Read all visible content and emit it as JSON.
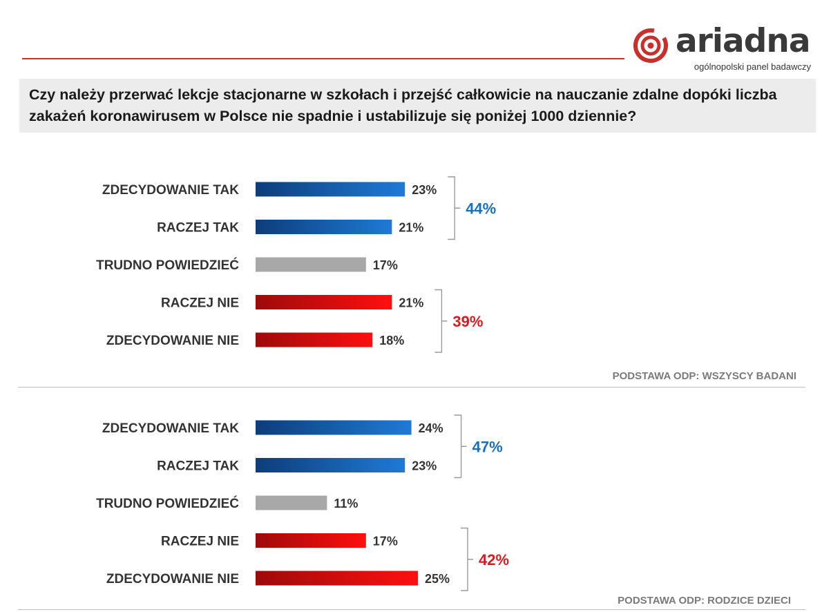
{
  "brand": {
    "name": "ariadna",
    "tagline": "ogólnopolski panel badawczy",
    "accent": "#c9302c"
  },
  "question": "Czy należy przerwać lekcje stacjonarne w szkołach i przejść całkowicie na nauczanie zdalne dopóki liczba zakażeń koronawirusem w Polsce nie spadnie i ustabilizuje się poniżej 1000 dziennie?",
  "colors": {
    "yes_dark": "#0d3d7a",
    "yes_light": "#1f7ad6",
    "neutral": "#a8a8a8",
    "no_dark": "#9e0a0a",
    "no_light": "#ff0f0f",
    "yes_total": "#1570c0",
    "no_total": "#e0181e"
  },
  "chart_data": [
    {
      "type": "bar",
      "orientation": "horizontal",
      "base": "PODSTAWA ODP: WSZYSCY BADANI",
      "categories": [
        "ZDECYDOWANIE TAK",
        "RACZEJ TAK",
        "TRUDNO POWIEDZIEĆ",
        "RACZEJ NIE",
        "ZDECYDOWANIE NIE"
      ],
      "values": [
        23,
        21,
        17,
        21,
        18
      ],
      "value_labels": [
        "23%",
        "21%",
        "17%",
        "21%",
        "18%"
      ],
      "groups": [
        {
          "label": "44%",
          "value": 44,
          "items": [
            0,
            1
          ],
          "kind": "yes"
        },
        {
          "label": "39%",
          "value": 39,
          "items": [
            3,
            4
          ],
          "kind": "no"
        }
      ],
      "unit": "%"
    },
    {
      "type": "bar",
      "orientation": "horizontal",
      "base": "PODSTAWA ODP: RODZICE DZIECI",
      "categories": [
        "ZDECYDOWANIE TAK",
        "RACZEJ TAK",
        "TRUDNO POWIEDZIEĆ",
        "RACZEJ NIE",
        "ZDECYDOWANIE NIE"
      ],
      "values": [
        24,
        23,
        11,
        17,
        25
      ],
      "value_labels": [
        "24%",
        "23%",
        "11%",
        "17%",
        "25%"
      ],
      "groups": [
        {
          "label": "47%",
          "value": 47,
          "items": [
            0,
            1
          ],
          "kind": "yes"
        },
        {
          "label": "42%",
          "value": 42,
          "items": [
            3,
            4
          ],
          "kind": "no"
        }
      ],
      "unit": "%"
    }
  ]
}
